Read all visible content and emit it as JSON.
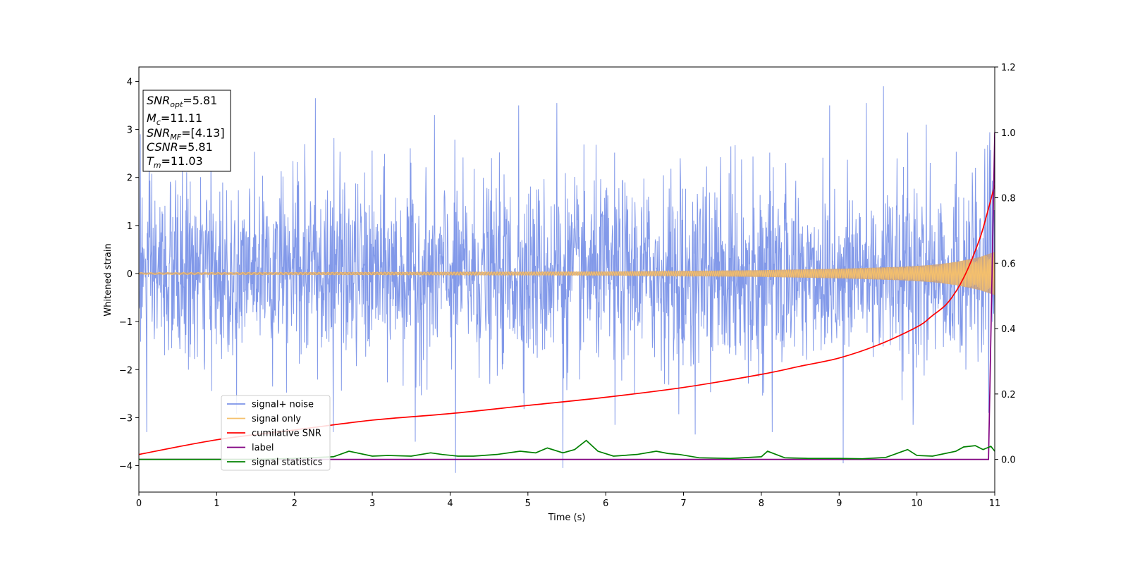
{
  "chart_data": {
    "type": "line",
    "xlabel": "Time (s)",
    "ylabel": "Whitened strain",
    "y2label": "",
    "xlim": [
      0,
      11
    ],
    "ylim": [
      -4.55,
      4.3
    ],
    "y2lim": [
      -0.1,
      1.2
    ],
    "xticks": [
      0,
      1,
      2,
      3,
      4,
      5,
      6,
      7,
      8,
      9,
      10,
      11
    ],
    "yticks": [
      -4,
      -3,
      -2,
      -1,
      0,
      1,
      2,
      3,
      4
    ],
    "y2ticks": [
      0.0,
      0.2,
      0.4,
      0.6,
      0.8,
      1.0,
      1.2
    ],
    "xtick_labels": [
      "0",
      "1",
      "2",
      "3",
      "4",
      "5",
      "6",
      "7",
      "8",
      "9",
      "10",
      "11"
    ],
    "ytick_labels": [
      "−4",
      "−3",
      "−2",
      "−1",
      "0",
      "1",
      "2",
      "3",
      "4"
    ],
    "y2tick_labels": [
      "0.0",
      "0.2",
      "0.4",
      "0.6",
      "0.8",
      "1.0",
      "1.2"
    ],
    "legend_position": "lower-left",
    "grid": false,
    "info_box": {
      "snr_opt": "SNR",
      "snr_opt_sub": "opt",
      "snr_opt_value": "=5.81",
      "mc": "M",
      "mc_sub": "c",
      "mc_value": "=11.11",
      "snr_mf": "SNR",
      "snr_mf_sub": "MF",
      "snr_mf_value": "=[4.13]",
      "csnr": "CSNR",
      "csnr_value": "=5.81",
      "tm": "T",
      "tm_sub": "m",
      "tm_value": "=11.03"
    },
    "series": [
      {
        "name": "signal+ noise",
        "axis": "left",
        "color": "#7b93e8",
        "description_values": {
          "mean": 0.0,
          "envelope_upper": 2.4,
          "envelope_lower": -2.4,
          "notable_peaks": [
            [
              0.02,
              2.9
            ],
            [
              2.27,
              3.65
            ],
            [
              3.8,
              3.3
            ],
            [
              4.88,
              3.5
            ],
            [
              5.37,
              3.55
            ],
            [
              8.88,
              3.5
            ],
            [
              9.35,
              3.55
            ],
            [
              9.57,
              3.9
            ],
            [
              10.12,
              3.1
            ],
            [
              10.87,
              2.6
            ]
          ],
          "notable_troughs": [
            [
              0.1,
              -3.3
            ],
            [
              2.5,
              -3.3
            ],
            [
              3.55,
              -3.5
            ],
            [
              4.07,
              -4.15
            ],
            [
              5.45,
              -4.05
            ],
            [
              6.12,
              -3.15
            ],
            [
              7.15,
              -3.35
            ],
            [
              8.14,
              -3.3
            ],
            [
              9.05,
              -3.95
            ],
            [
              9.95,
              -3.15
            ],
            [
              10.92,
              -2.9
            ]
          ]
        }
      },
      {
        "name": "signal only",
        "axis": "left",
        "color": "#f5c06c",
        "description_values": {
          "envelope": [
            [
              0,
              0.02
            ],
            [
              6,
              0.04
            ],
            [
              8,
              0.07
            ],
            [
              9,
              0.1
            ],
            [
              9.8,
              0.14
            ],
            [
              10.2,
              0.18
            ],
            [
              10.5,
              0.24
            ],
            [
              10.8,
              0.34
            ],
            [
              11,
              0.45
            ]
          ]
        }
      },
      {
        "name": "cumilative SNR",
        "axis": "right",
        "color": "#ff0000",
        "x": [
          0,
          1,
          2,
          3,
          4,
          5,
          6,
          7,
          8,
          8.5,
          9,
          9.5,
          10,
          10.2,
          10.4,
          10.6,
          10.8,
          10.9,
          11
        ],
        "y": [
          0.015,
          0.06,
          0.09,
          0.12,
          0.14,
          0.165,
          0.19,
          0.22,
          0.26,
          0.285,
          0.31,
          0.35,
          0.405,
          0.44,
          0.48,
          0.555,
          0.67,
          0.75,
          0.84
        ]
      },
      {
        "name": "label",
        "axis": "right",
        "color": "#800080",
        "x": [
          0,
          10.92,
          11,
          11
        ],
        "y": [
          0.0,
          0.0,
          1.0,
          1.0
        ]
      },
      {
        "name": "signal statistics",
        "axis": "right",
        "color": "#008000",
        "x": [
          0,
          0.5,
          1,
          1.5,
          2,
          2.5,
          2.7,
          2.8,
          3.0,
          3.2,
          3.5,
          3.75,
          3.9,
          4.1,
          4.3,
          4.6,
          4.9,
          5.1,
          5.25,
          5.45,
          5.6,
          5.75,
          5.9,
          6.1,
          6.4,
          6.65,
          6.8,
          6.95,
          7.2,
          7.6,
          8.0,
          8.08,
          8.3,
          8.6,
          9.0,
          9.3,
          9.6,
          9.88,
          10.0,
          10.2,
          10.5,
          10.6,
          10.75,
          10.85,
          10.95,
          11.0
        ],
        "y": [
          0.0,
          0.0,
          0.0,
          0.0,
          0.003,
          0.008,
          0.025,
          0.02,
          0.01,
          0.012,
          0.01,
          0.02,
          0.015,
          0.01,
          0.01,
          0.015,
          0.025,
          0.02,
          0.035,
          0.02,
          0.03,
          0.058,
          0.025,
          0.01,
          0.015,
          0.025,
          0.018,
          0.015,
          0.005,
          0.003,
          0.008,
          0.025,
          0.005,
          0.003,
          0.003,
          0.002,
          0.006,
          0.03,
          0.012,
          0.01,
          0.025,
          0.038,
          0.042,
          0.03,
          0.04,
          0.025
        ]
      }
    ]
  }
}
